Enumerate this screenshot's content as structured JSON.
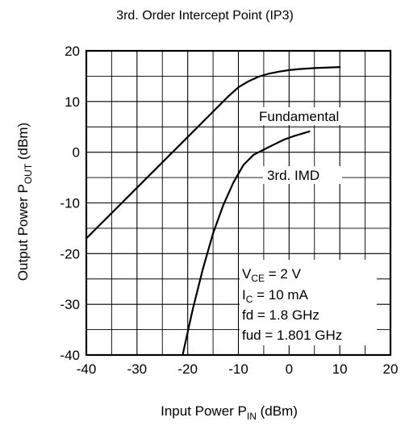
{
  "chart_data": {
    "type": "line",
    "title": "3rd. Order Intercept Point (IP3)",
    "xlabel": {
      "main": "Input Power   P",
      "sub": "IN",
      "unit": "  (dBm)"
    },
    "ylabel": {
      "main": "Output Power   P",
      "sub": "OUT",
      "unit": "  (dBm)"
    },
    "xlim": [
      -40,
      20
    ],
    "ylim": [
      -40,
      20
    ],
    "x_ticks": [
      "-40",
      "-30",
      "-20",
      "-10",
      "0",
      "10",
      "20"
    ],
    "y_ticks": [
      "20",
      "10",
      "0",
      "-10",
      "-20",
      "-30",
      "-40"
    ],
    "grid": true,
    "series": [
      {
        "name": "Fundamental",
        "x": [
          -40,
          -35,
          -30,
          -25,
          -20,
          -15,
          -12,
          -10,
          -8,
          -6,
          -4,
          -2,
          0,
          2,
          5,
          10
        ],
        "y": [
          -17,
          -12,
          -7,
          -2,
          3,
          8,
          11,
          12.8,
          14,
          14.9,
          15.5,
          15.9,
          16.2,
          16.4,
          16.6,
          16.8
        ]
      },
      {
        "name": "3rd. IMD",
        "x": [
          -21,
          -19,
          -17,
          -15,
          -13,
          -11,
          -9,
          -7,
          -5,
          -3,
          -1,
          1,
          4
        ],
        "y": [
          -40,
          -31,
          -23,
          -16,
          -10.5,
          -6,
          -2.5,
          -0.5,
          0.5,
          1.5,
          2.5,
          3.2,
          4.1
        ]
      }
    ],
    "annotations": {
      "fundamental_label": "Fundamental",
      "imd_label": "3rd. IMD",
      "conditions": [
        {
          "main": "V",
          "sub": "CE",
          "rest": " = 2 V"
        },
        {
          "main": "I",
          "sub": "C",
          "rest": " = 10 mA"
        },
        {
          "main": "fd = 1.8 GHz",
          "sub": "",
          "rest": ""
        },
        {
          "main": "fud = 1.801 GHz",
          "sub": "",
          "rest": ""
        }
      ]
    }
  }
}
